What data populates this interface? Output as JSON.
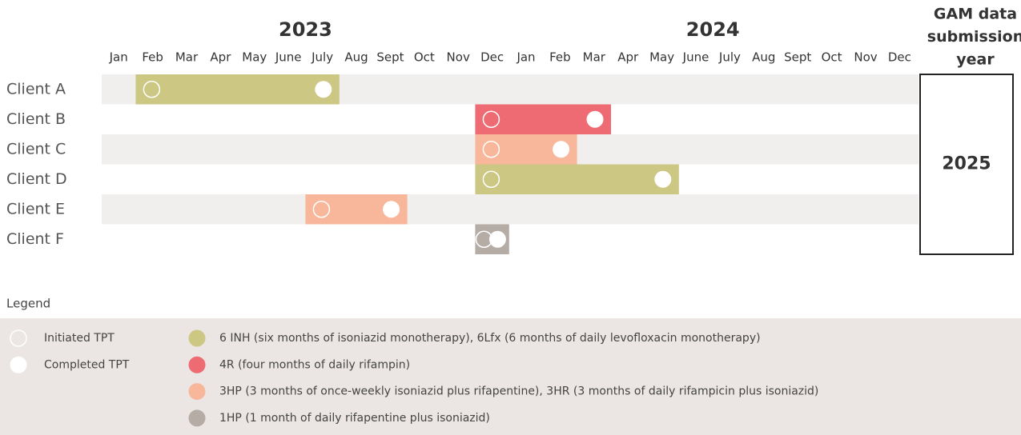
{
  "years": [
    {
      "label": "2023"
    },
    {
      "label": "2024"
    }
  ],
  "months": [
    "Jan",
    "Feb",
    "Mar",
    "Apr",
    "May",
    "June",
    "July",
    "Aug",
    "Sept",
    "Oct",
    "Nov",
    "Dec",
    "Jan",
    "Feb",
    "Mar",
    "Apr",
    "May",
    "June",
    "July",
    "Aug",
    "Sept",
    "Oct",
    "Nov",
    "Dec"
  ],
  "gam": {
    "header": [
      "GAM data",
      "submission",
      "year"
    ],
    "value": "2025"
  },
  "clients": [
    {
      "name": "Client A",
      "start": 1,
      "end": 7,
      "category": 0
    },
    {
      "name": "Client B",
      "start": 11,
      "end": 15,
      "category": 1
    },
    {
      "name": "Client C",
      "start": 11,
      "end": 14,
      "category": 2
    },
    {
      "name": "Client D",
      "start": 11,
      "end": 17,
      "category": 0
    },
    {
      "name": "Client E",
      "start": 6,
      "end": 9,
      "category": 2
    },
    {
      "name": "Client F",
      "start": 11,
      "end": 12,
      "category": 3
    }
  ],
  "legend": {
    "title": "Legend",
    "markers": [
      "Initiated TPT",
      "Completed TPT"
    ],
    "categories": [
      {
        "label": "6 INH (six months of isoniazid monotherapy), 6Lfx (6 months of daily levofloxacin monotherapy)",
        "color": "#cdc784"
      },
      {
        "label": "4R (four months of daily rifampin)",
        "color": "#ee6b73"
      },
      {
        "label": "3HP (3 months of once-weekly isoniazid plus rifapentine), 3HR (3 months of daily rifampicin plus isoniazid)",
        "color": "#f8b79a"
      },
      {
        "label": "1HP (1 month of daily rifapentine plus isoniazid)",
        "color": "#b5aca6"
      }
    ]
  }
}
